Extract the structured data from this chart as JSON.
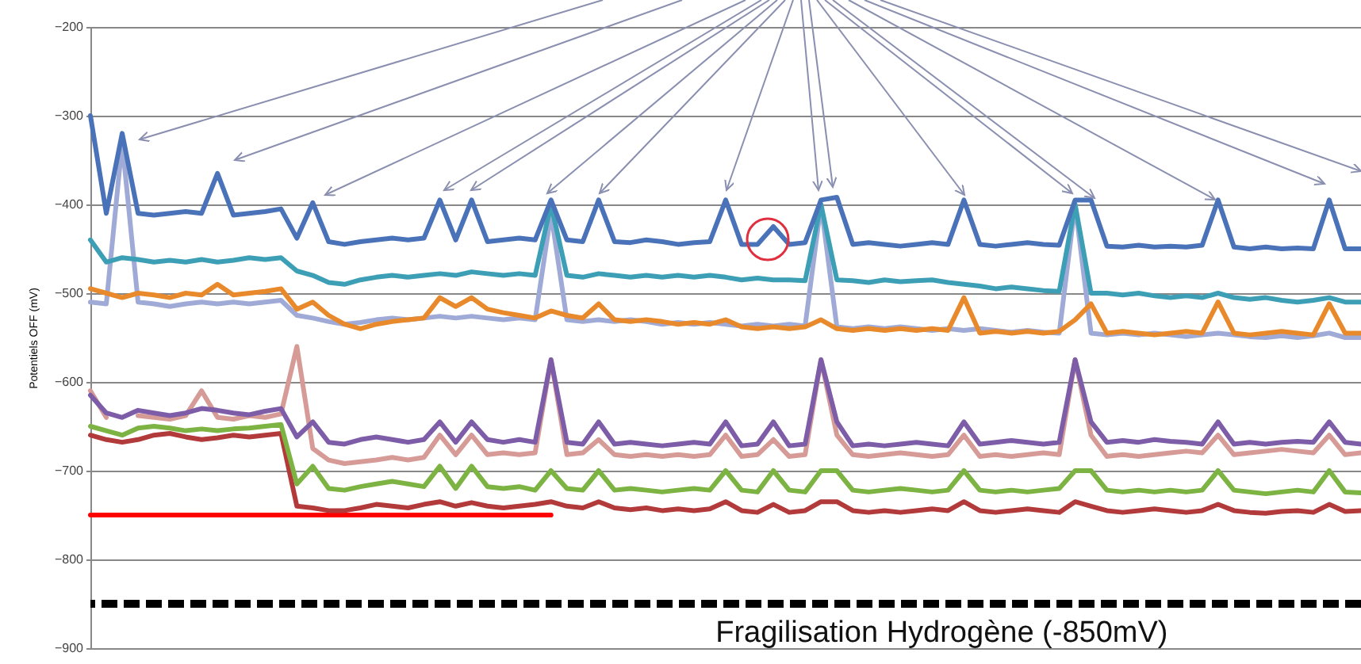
{
  "chart_data": {
    "type": "line",
    "ylabel": "Potentiels OFF (mV)",
    "categories": [
      null,
      null,
      null,
      null,
      null,
      null,
      null,
      null,
      null,
      null,
      null,
      null,
      null,
      null,
      null,
      null,
      null,
      null,
      null,
      null,
      null,
      null,
      null,
      null,
      null,
      null,
      null,
      null,
      null,
      null,
      null,
      null,
      null,
      null,
      null,
      null,
      null,
      null,
      null,
      null,
      null,
      null,
      null,
      null,
      null,
      null,
      null,
      null,
      null,
      null,
      null,
      null,
      null,
      null,
      null,
      null,
      null,
      null,
      null,
      null,
      null,
      null,
      null,
      null,
      null,
      null,
      null,
      null,
      null,
      null,
      null,
      null,
      null,
      null,
      null,
      null,
      null,
      null,
      null,
      null,
      null
    ],
    "ylim": [
      -900,
      -200
    ],
    "yticks": [
      -200,
      -300,
      -400,
      -500,
      -600,
      -700,
      -800,
      -900
    ],
    "grid": "y",
    "tick_labels": "y",
    "series": [
      {
        "color": "#ff0000",
        "values": [
          -750,
          -750,
          -750,
          -750,
          -750,
          -750,
          -750,
          -750,
          -750,
          -750,
          -750,
          -750,
          -750,
          -750,
          -750,
          -750,
          -750,
          -750,
          -750,
          -750,
          -750,
          -750,
          -750,
          -750,
          -750,
          -750,
          -750,
          -750,
          -750,
          -750,
          null,
          null,
          null,
          null,
          null,
          null,
          null,
          null,
          null,
          null,
          null,
          null,
          null,
          null,
          null,
          null,
          null,
          null,
          null,
          null,
          null,
          null,
          null,
          null,
          null,
          null,
          null,
          null,
          null,
          null,
          null,
          null,
          null,
          null,
          null,
          null,
          null,
          null,
          null,
          null,
          null,
          null,
          null,
          null,
          null,
          null,
          null,
          null,
          null,
          null,
          null
        ]
      },
      {
        "color": "#b23a3a",
        "values": [
          -660,
          -665,
          -668,
          -665,
          -660,
          -658,
          -662,
          -665,
          -663,
          -660,
          -662,
          -660,
          -658,
          -740,
          -742,
          -745,
          -745,
          -742,
          -738,
          -740,
          -742,
          -738,
          -735,
          -740,
          -736,
          -740,
          -742,
          -740,
          -738,
          -735,
          -740,
          -742,
          -735,
          -742,
          -744,
          -742,
          -745,
          -743,
          -745,
          -743,
          -735,
          -745,
          -747,
          -738,
          -747,
          -745,
          -735,
          -735,
          -745,
          -747,
          -745,
          -747,
          -745,
          -743,
          -745,
          -735,
          -745,
          -747,
          -745,
          -743,
          -745,
          -747,
          -735,
          -740,
          -745,
          -747,
          -745,
          -743,
          -745,
          -747,
          -745,
          -738,
          -745,
          -747,
          -748,
          -746,
          -745,
          -747,
          -738,
          -746,
          -745
        ]
      },
      {
        "color": "#7cb342",
        "values": [
          -650,
          -655,
          -660,
          -652,
          -650,
          -652,
          -655,
          -653,
          -655,
          -653,
          -652,
          -650,
          -648,
          -715,
          -695,
          -720,
          -722,
          -718,
          -715,
          -712,
          -715,
          -718,
          -695,
          -720,
          -695,
          -718,
          -720,
          -718,
          -722,
          -700,
          -720,
          -722,
          -700,
          -722,
          -720,
          -722,
          -724,
          -722,
          -720,
          -722,
          -700,
          -722,
          -724,
          -700,
          -722,
          -724,
          -700,
          -700,
          -722,
          -724,
          -722,
          -720,
          -722,
          -724,
          -722,
          -700,
          -722,
          -724,
          -722,
          -724,
          -722,
          -720,
          -700,
          -700,
          -722,
          -724,
          -722,
          -724,
          -722,
          -724,
          -722,
          -700,
          -722,
          -724,
          -726,
          -724,
          -722,
          -724,
          -700,
          -724,
          -725
        ]
      },
      {
        "color": "#d69b96",
        "values": [
          -610,
          -640,
          null,
          -638,
          -640,
          -642,
          -638,
          -610,
          -640,
          -642,
          -638,
          -640,
          -636,
          -560,
          -675,
          -688,
          -692,
          -690,
          -688,
          -685,
          -688,
          -685,
          -660,
          -682,
          -660,
          -682,
          -680,
          -682,
          -680,
          -575,
          -682,
          -680,
          -665,
          -682,
          -684,
          -682,
          -684,
          -682,
          -684,
          -682,
          -660,
          -684,
          -682,
          -665,
          -684,
          -682,
          -575,
          -660,
          -682,
          -684,
          -682,
          -680,
          -682,
          -684,
          -682,
          -660,
          -684,
          -682,
          -684,
          -682,
          -680,
          -682,
          -575,
          -660,
          -684,
          -682,
          -684,
          -682,
          -680,
          -678,
          -680,
          -660,
          -682,
          -680,
          -678,
          -676,
          -678,
          -680,
          -660,
          -682,
          -680
        ]
      },
      {
        "color": "#7d5ca8",
        "values": [
          -615,
          -635,
          -640,
          -632,
          -635,
          -638,
          -635,
          -630,
          -632,
          -635,
          -637,
          -633,
          -630,
          -662,
          -645,
          -668,
          -670,
          -665,
          -662,
          -665,
          -668,
          -665,
          -645,
          -668,
          -645,
          -665,
          -668,
          -665,
          -668,
          -575,
          -668,
          -670,
          -645,
          -670,
          -668,
          -670,
          -672,
          -670,
          -668,
          -670,
          -645,
          -672,
          -670,
          -645,
          -672,
          -670,
          -575,
          -645,
          -672,
          -670,
          -672,
          -670,
          -668,
          -670,
          -672,
          -645,
          -670,
          -668,
          -666,
          -668,
          -670,
          -668,
          -575,
          -645,
          -668,
          -666,
          -668,
          -665,
          -667,
          -668,
          -670,
          -645,
          -670,
          -668,
          -670,
          -668,
          -667,
          -668,
          -645,
          -668,
          -670
        ]
      },
      {
        "color": "#9faad6",
        "values": [
          -510,
          -512,
          -330,
          -510,
          -512,
          -515,
          -512,
          -510,
          -512,
          -510,
          -512,
          -510,
          -508,
          -525,
          -528,
          -532,
          -535,
          -533,
          -530,
          -528,
          -530,
          -528,
          -526,
          -528,
          -526,
          -528,
          -530,
          -528,
          -530,
          -410,
          -530,
          -532,
          -530,
          -532,
          -530,
          -532,
          -535,
          -533,
          -535,
          -533,
          -535,
          -537,
          -535,
          -537,
          -535,
          -537,
          -400,
          -538,
          -540,
          -538,
          -540,
          -538,
          -540,
          -542,
          -540,
          -542,
          -540,
          -542,
          -544,
          -542,
          -544,
          -545,
          -400,
          -545,
          -547,
          -545,
          -547,
          -545,
          -547,
          -549,
          -547,
          -545,
          -547,
          -549,
          -550,
          -548,
          -550,
          -548,
          -545,
          -550,
          -550
        ]
      },
      {
        "color": "#e88a2c",
        "values": [
          -495,
          -500,
          -505,
          -500,
          -502,
          -505,
          -500,
          -502,
          -490,
          -502,
          -500,
          -498,
          -495,
          -518,
          -510,
          -525,
          -535,
          -540,
          -535,
          -532,
          -530,
          -528,
          -505,
          -515,
          -505,
          -518,
          -522,
          -525,
          -528,
          -520,
          -525,
          -528,
          -512,
          -530,
          -532,
          -530,
          -532,
          -535,
          -533,
          -535,
          -530,
          -538,
          -540,
          -538,
          -540,
          -538,
          -530,
          -540,
          -542,
          -540,
          -542,
          -540,
          -542,
          -540,
          -542,
          -505,
          -545,
          -543,
          -545,
          -543,
          -545,
          -543,
          -530,
          -512,
          -545,
          -543,
          -545,
          -547,
          -545,
          -543,
          -545,
          -510,
          -545,
          -547,
          -545,
          -543,
          -545,
          -547,
          -512,
          -545,
          -545
        ]
      },
      {
        "color": "#3d9fb5",
        "values": [
          -440,
          -465,
          -460,
          -462,
          -465,
          -463,
          -465,
          -462,
          -465,
          -463,
          -460,
          -462,
          -460,
          -475,
          -480,
          -488,
          -490,
          -485,
          -482,
          -480,
          -482,
          -480,
          -478,
          -480,
          -476,
          -478,
          -480,
          -478,
          -480,
          -400,
          -480,
          -482,
          -478,
          -480,
          -482,
          -480,
          -482,
          -480,
          -482,
          -480,
          -482,
          -485,
          -483,
          -485,
          -485,
          -486,
          -400,
          -485,
          -486,
          -488,
          -485,
          -487,
          -486,
          -485,
          -488,
          -490,
          -492,
          -495,
          -493,
          -495,
          -497,
          -498,
          -400,
          -500,
          -500,
          -502,
          -500,
          -503,
          -505,
          -503,
          -505,
          -500,
          -505,
          -507,
          -505,
          -508,
          -510,
          -508,
          -505,
          -510,
          -510
        ]
      },
      {
        "color": "#4a72b8",
        "values": [
          -300,
          -410,
          -320,
          -410,
          -412,
          -410,
          -408,
          -410,
          -365,
          -412,
          -410,
          -408,
          -405,
          -438,
          -398,
          -442,
          -445,
          -442,
          -440,
          -438,
          -440,
          -438,
          -395,
          -440,
          -395,
          -442,
          -440,
          -438,
          -440,
          -395,
          -440,
          -442,
          -395,
          -442,
          -443,
          -440,
          -442,
          -445,
          -443,
          -442,
          -395,
          -445,
          -445,
          -425,
          -445,
          -443,
          -395,
          -392,
          -445,
          -443,
          -445,
          -447,
          -445,
          -443,
          -445,
          -395,
          -445,
          -447,
          -445,
          -443,
          -445,
          -446,
          -395,
          -395,
          -447,
          -448,
          -446,
          -448,
          -447,
          -448,
          -446,
          -395,
          -448,
          -450,
          -448,
          -450,
          -449,
          -450,
          -395,
          -450,
          -450
        ]
      }
    ],
    "ref_lines": [
      {
        "axis": "y",
        "value": -850,
        "label": "Fragilisation Hydrogène (-850mV)",
        "color": "#000000",
        "line_style": "dashed"
      }
    ]
  }
}
